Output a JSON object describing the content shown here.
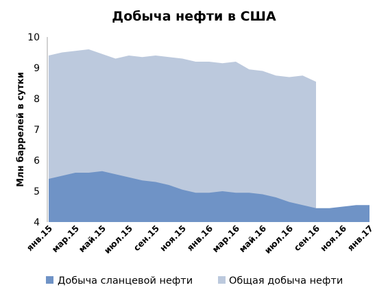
{
  "chart_data": {
    "type": "area",
    "title": "Добыча нефти в США",
    "xlabel": "",
    "ylabel": "Млн баррелей в сутки",
    "ylim": [
      4,
      10
    ],
    "yticks": [
      4,
      5,
      6,
      7,
      8,
      9,
      10
    ],
    "grid": false,
    "legend": "bottom",
    "x": [
      "янв.15",
      "фев.15",
      "мар.15",
      "апр.15",
      "май.15",
      "июн.15",
      "июл.15",
      "авг.15",
      "сен.15",
      "окт.15",
      "ноя.15",
      "дек.15",
      "янв.16",
      "фев.16",
      "мар.16",
      "апр.16",
      "май.16",
      "июн.16",
      "июл.16",
      "авг.16",
      "сен.16",
      "окт.16",
      "ноя.16",
      "дек.16",
      "янв.17"
    ],
    "xtick_labels": [
      "янв.15",
      "мар.15",
      "май.15",
      "июл.15",
      "сен.15",
      "ноя.15",
      "янв.16",
      "мар.16",
      "май.16",
      "июл.16",
      "сен.16",
      "ноя.16",
      "янв.17"
    ],
    "series": [
      {
        "name": "Добыча сланцевой нефти",
        "color": "#6f93c6",
        "values": [
          5.4,
          5.5,
          5.6,
          5.6,
          5.65,
          5.55,
          5.45,
          5.35,
          5.3,
          5.2,
          5.05,
          4.95,
          4.95,
          5.0,
          4.95,
          4.95,
          4.9,
          4.8,
          4.65,
          4.55,
          4.45,
          4.45,
          4.5,
          4.55,
          4.55
        ]
      },
      {
        "name": "Общая добыча нефти",
        "color": "#bcc9dd",
        "values": [
          9.4,
          9.5,
          9.55,
          9.6,
          9.45,
          9.3,
          9.4,
          9.35,
          9.4,
          9.35,
          9.3,
          9.2,
          9.2,
          9.15,
          9.2,
          8.95,
          8.9,
          8.75,
          8.7,
          8.75,
          8.55,
          null,
          null,
          null,
          null
        ]
      }
    ]
  }
}
